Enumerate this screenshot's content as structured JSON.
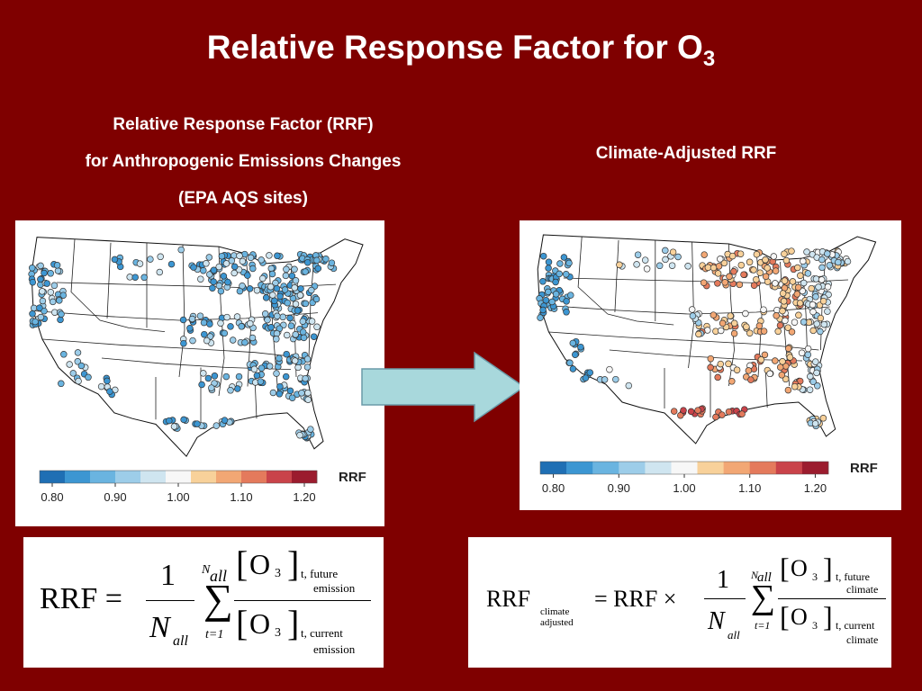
{
  "slide": {
    "title_main": "Relative Response Factor for O",
    "title_sub": "3"
  },
  "left_panel": {
    "heading_lines": [
      "Relative Response Factor (RRF)",
      "for Anthropogenic Emissions Changes",
      "(EPA AQS sites)"
    ],
    "legend": {
      "label": "RRF",
      "ticks": [
        "0.80",
        "0.90",
        "1.00",
        "1.10",
        "1.20"
      ],
      "colors": [
        "#1f6fb4",
        "#3c96d2",
        "#6ab4e0",
        "#9dcde9",
        "#cfe5f0",
        "#f7f7f7",
        "#f8d19a",
        "#f2a774",
        "#e47a5c",
        "#c9434a",
        "#9b1c2e"
      ]
    }
  },
  "right_panel": {
    "heading": "Climate-Adjusted RRF",
    "legend": {
      "label": "RRF",
      "ticks": [
        "0.80",
        "0.90",
        "1.00",
        "1.10",
        "1.20"
      ],
      "colors": [
        "#1f6fb4",
        "#3c96d2",
        "#6ab4e0",
        "#9dcde9",
        "#cfe5f0",
        "#f7f7f7",
        "#f8d19a",
        "#f2a774",
        "#e47a5c",
        "#c9434a",
        "#9b1c2e"
      ]
    }
  },
  "arrow": {
    "icon": "right-arrow-icon",
    "fill": "#a8d8dc"
  },
  "formula_left": {
    "lhs": "RRF =",
    "one": "1",
    "N": "N",
    "all": "all",
    "sum_top_N": "N",
    "sum_top_all": "all",
    "sigma": "∑",
    "sum_bottom": "t=1",
    "o3": "O",
    "three": "3",
    "num_sub": "t, future",
    "num_sub2": "emission",
    "den_sub": "t, current",
    "den_sub2": "emission"
  },
  "formula_right": {
    "lhs": "RRF",
    "lhs_sub1": "climate",
    "lhs_sub2": "adjusted",
    "eq": "= RRF ×",
    "one": "1",
    "N": "N",
    "all": "all",
    "sum_top_N": "N",
    "sum_top_all": "all",
    "sigma": "∑",
    "sum_bottom": "t=1",
    "o3": "O",
    "three": "3",
    "num_sub": "t, future",
    "num_sub2": "climate",
    "den_sub": "t, current",
    "den_sub2": "climate"
  }
}
